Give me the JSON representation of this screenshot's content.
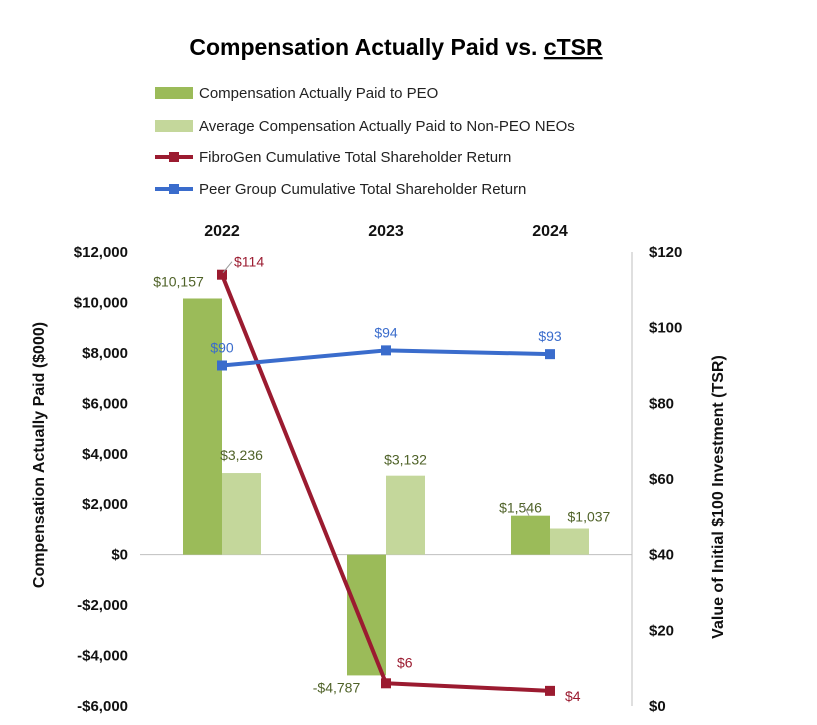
{
  "chart_data": {
    "type": "bar",
    "title_main": "Compensation Actually Paid vs. ",
    "title_underlined": "cTSR",
    "categories": [
      "2022",
      "2023",
      "2024"
    ],
    "series": [
      {
        "name": "Compensation Actually Paid to PEO",
        "kind": "bar",
        "axis": "left",
        "color": "#9bbb59",
        "values": [
          10157,
          -4787,
          1546
        ],
        "labels": [
          "$10,157",
          "-$4,787",
          "$1,546"
        ]
      },
      {
        "name": "Average Compensation Actually Paid to Non-PEO NEOs",
        "kind": "bar",
        "axis": "left",
        "color": "#c4d79b",
        "values": [
          3236,
          3132,
          1037
        ],
        "labels": [
          "$3,236",
          "$3,132",
          "$1,037"
        ]
      },
      {
        "name": "FibroGen Cumulative Total Shareholder Return",
        "kind": "line",
        "axis": "right",
        "color": "#9b1b30",
        "values": [
          114,
          6,
          4
        ],
        "labels": [
          "$114",
          "$6",
          "$4"
        ]
      },
      {
        "name": "Peer Group Cumulative Total Shareholder Return",
        "kind": "line",
        "axis": "right",
        "color": "#3a6ccc",
        "values": [
          90,
          94,
          93
        ],
        "labels": [
          "$90",
          "$94",
          "$93"
        ]
      }
    ],
    "ylabel": "Compensation Actually Paid ($000)",
    "y2label": "Value of Initial $100 Investment (TSR)",
    "ylim": [
      -6000,
      12000
    ],
    "yticks": [
      12000,
      10000,
      8000,
      6000,
      4000,
      2000,
      0,
      -2000,
      -4000,
      -6000
    ],
    "yticklabels": [
      "$12,000",
      "$10,000",
      "$8,000",
      "$6,000",
      "$4,000",
      "$2,000",
      "$0",
      "-$2,000",
      "-$4,000",
      "-$6,000"
    ],
    "y2lim": [
      0,
      120
    ],
    "y2ticks": [
      120,
      100,
      80,
      60,
      40,
      20,
      0
    ],
    "y2ticklabels": [
      "$120",
      "$100",
      "$80",
      "$60",
      "$40",
      "$20",
      "$0"
    ],
    "legend_position": "top",
    "grid": false
  }
}
